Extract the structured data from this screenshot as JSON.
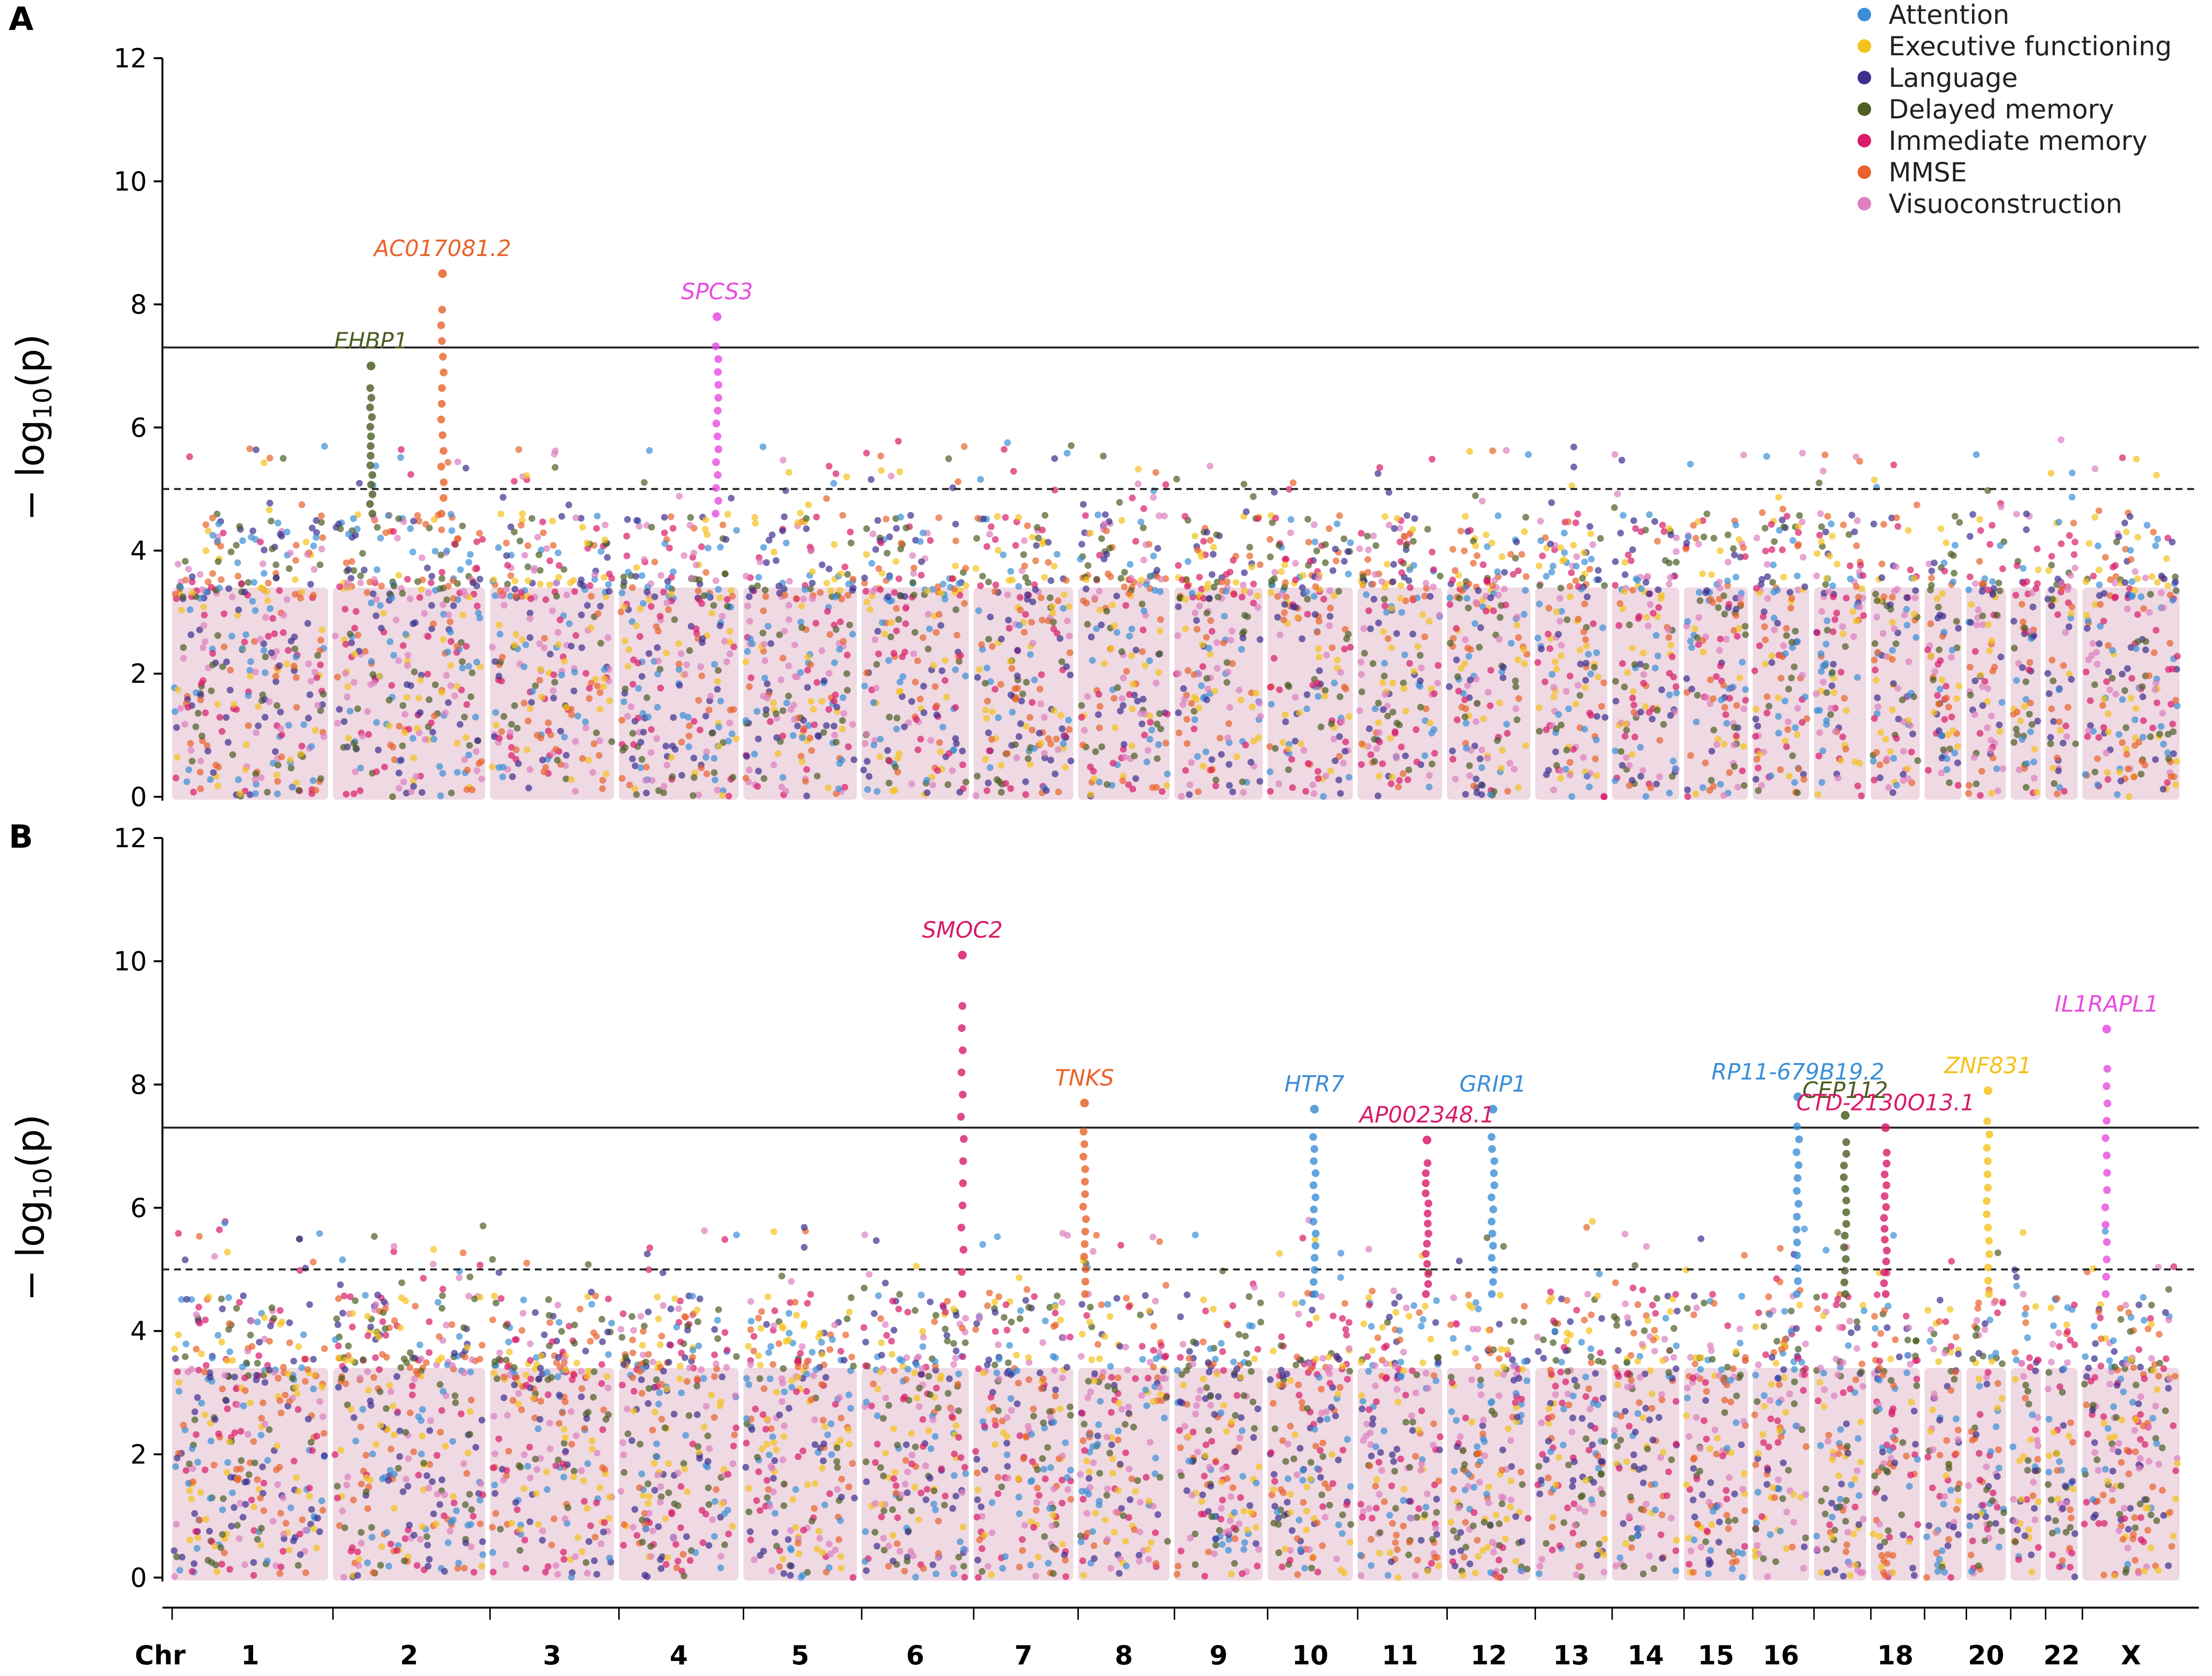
{
  "figure": {
    "type": "manhattan",
    "panels": [
      "A",
      "B"
    ]
  },
  "legend": [
    {
      "label": "Attention",
      "color": "#3b8fd6"
    },
    {
      "label": "Executive functioning",
      "color": "#f4c21b"
    },
    {
      "label": "Language",
      "color": "#3c2f8f"
    },
    {
      "label": "Delayed memory",
      "color": "#4b5e23"
    },
    {
      "label": "Immediate memory",
      "color": "#d81b6a"
    },
    {
      "label": "MMSE",
      "color": "#e8632b"
    },
    {
      "label": "Visuoconstruction",
      "color": "#dd7fbf"
    }
  ],
  "axes": {
    "ylabel_prefix": "− log",
    "ylabel_sub": "10",
    "ylabel_suffix": "(p)",
    "chr_axis_label": "Chr"
  },
  "chart_data": {
    "type": "scatter",
    "title": "",
    "xlabel": "Chr",
    "ylabel": "−log10(p)",
    "ylim": [
      0,
      12
    ],
    "yticks": [
      0,
      2,
      4,
      6,
      8,
      10,
      12
    ],
    "genome_wide_threshold": 7.3,
    "suggestive_threshold": 5.0,
    "chromosomes": [
      "1",
      "2",
      "3",
      "4",
      "5",
      "6",
      "7",
      "8",
      "9",
      "10",
      "11",
      "12",
      "13",
      "14",
      "15",
      "16",
      "17",
      "18",
      "19",
      "20",
      "21",
      "22",
      "X"
    ],
    "chromosome_tick_labels": [
      "1",
      "2",
      "3",
      "4",
      "5",
      "6",
      "7",
      "8",
      "9",
      "10",
      "11",
      "12",
      "13",
      "14",
      "15",
      "16",
      "",
      "18",
      "",
      "20",
      "",
      "22",
      "X"
    ],
    "chromosome_lengths_mb": [
      249,
      243,
      198,
      191,
      181,
      171,
      159,
      146,
      141,
      136,
      135,
      133,
      115,
      107,
      102,
      90,
      83,
      78,
      59,
      63,
      48,
      51,
      155
    ],
    "panels": [
      {
        "label": "A",
        "annotations": [
          {
            "gene": "AC017081.2",
            "chr": "2",
            "pos": 0.72,
            "y": 8.5,
            "color": "#e8632b"
          },
          {
            "gene": "SPCS3",
            "chr": "4",
            "pos": 0.82,
            "y": 7.8,
            "color": "#e84be0"
          },
          {
            "gene": "EHBP1",
            "chr": "2",
            "pos": 0.25,
            "y": 7.0,
            "color": "#4b5e23"
          }
        ]
      },
      {
        "label": "B",
        "annotations": [
          {
            "gene": "SMOC2",
            "chr": "6",
            "pos": 0.94,
            "y": 10.1,
            "color": "#d81b6a"
          },
          {
            "gene": "TNKS",
            "chr": "8",
            "pos": 0.07,
            "y": 7.7,
            "color": "#e8632b"
          },
          {
            "gene": "HTR7",
            "chr": "10",
            "pos": 0.55,
            "y": 7.6,
            "color": "#3b8fd6"
          },
          {
            "gene": "GRIP1",
            "chr": "12",
            "pos": 0.55,
            "y": 7.6,
            "color": "#3b8fd6"
          },
          {
            "gene": "RP11-679B19.2",
            "chr": "16",
            "pos": 0.8,
            "y": 7.8,
            "color": "#3b8fd6"
          },
          {
            "gene": "CEP112",
            "chr": "17",
            "pos": 0.6,
            "y": 7.5,
            "color": "#4b5e23"
          },
          {
            "gene": "ZNF831",
            "chr": "20",
            "pos": 0.55,
            "y": 7.9,
            "color": "#f4c21b"
          },
          {
            "gene": "IL1RAPL1",
            "chr": "X",
            "pos": 0.25,
            "y": 8.9,
            "color": "#e84be0"
          },
          {
            "gene": "AP002348.1",
            "chr": "11",
            "pos": 0.82,
            "y": 7.1,
            "color": "#d81b6a"
          },
          {
            "gene": "CTD-2130O13.1",
            "chr": "18",
            "pos": 0.3,
            "y": 7.3,
            "color": "#d81b6a"
          }
        ]
      }
    ]
  }
}
